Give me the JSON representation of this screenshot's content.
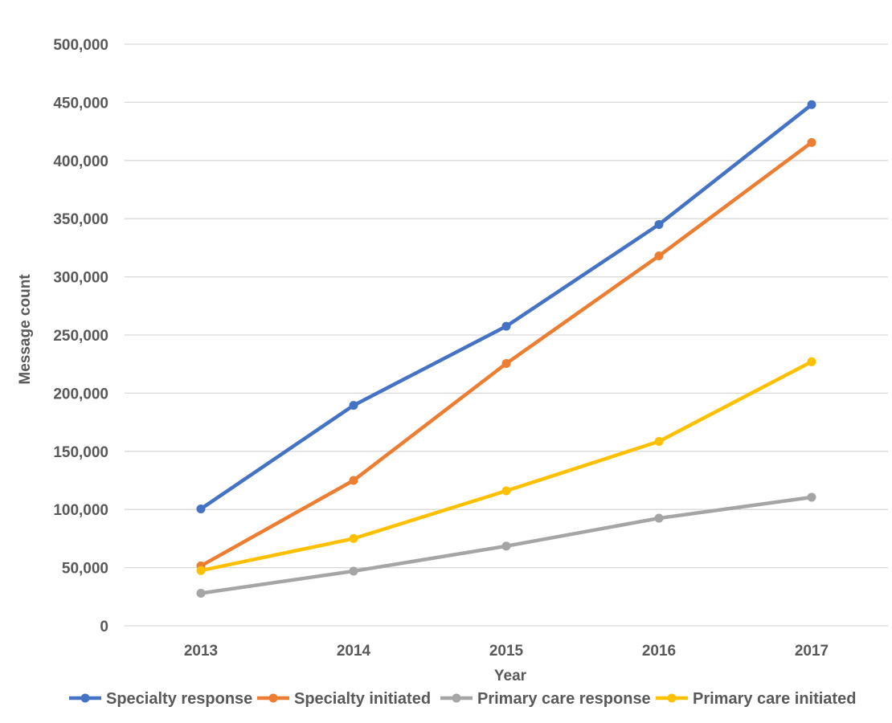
{
  "chart_data": {
    "type": "line",
    "title": "",
    "xlabel": "Year",
    "ylabel": "Message count",
    "categories": [
      "2013",
      "2014",
      "2015",
      "2016",
      "2017"
    ],
    "ylim": [
      0,
      500000
    ],
    "yticks": [
      0,
      50000,
      100000,
      150000,
      200000,
      250000,
      300000,
      350000,
      400000,
      450000,
      500000
    ],
    "ytick_labels": [
      "0",
      "50,000",
      "100,000",
      "150,000",
      "200,000",
      "250,000",
      "300,000",
      "350,000",
      "400,000",
      "450,000",
      "500,000"
    ],
    "grid": true,
    "legend_position": "bottom",
    "series": [
      {
        "name": "Specialty response",
        "color": "#4472C4",
        "values": [
          100500,
          189500,
          257500,
          345000,
          448000
        ]
      },
      {
        "name": "Specialty initiated",
        "color": "#ED7D31",
        "values": [
          51500,
          125000,
          225500,
          318000,
          415500
        ]
      },
      {
        "name": "Primary care response",
        "color": "#A5A5A5",
        "values": [
          28000,
          47000,
          68500,
          92500,
          110500
        ]
      },
      {
        "name": "Primary care initiated",
        "color": "#FFC000",
        "values": [
          47500,
          75000,
          116000,
          158500,
          227000
        ]
      }
    ]
  }
}
